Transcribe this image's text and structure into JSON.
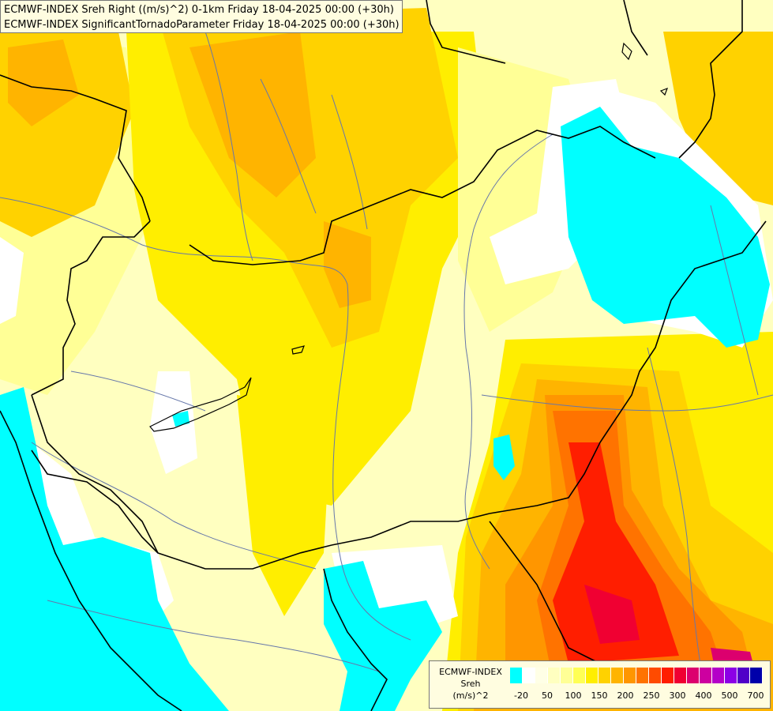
{
  "title_lines": [
    "ECMWF-INDEX Sreh Right ((m/s)^2) 0-1km Friday 18-04-2025 00:00 (+30h)",
    "ECMWF-INDEX SignificantTornadoParameter Friday 18-04-2025 00:00 (+30h)"
  ],
  "legend": {
    "source": "ECMWF-INDEX",
    "variable": "Sreh",
    "unit": "(m/s)^2",
    "colors": [
      "#00ffff",
      "#ffffff",
      "#ffffe6",
      "#ffffc0",
      "#ffff96",
      "#ffff55",
      "#ffee00",
      "#ffd200",
      "#ffb400",
      "#ff9600",
      "#ff7300",
      "#ff4b00",
      "#ff1e00",
      "#f00032",
      "#dc006e",
      "#cd00a0",
      "#b400c8",
      "#8c00e6",
      "#5000c8",
      "#0000aa"
    ],
    "ticks": [
      "-20",
      "50",
      "100",
      "150",
      "200",
      "250",
      "300",
      "400",
      "500",
      "700"
    ]
  },
  "map_colors": {
    "background": "#ffffc0",
    "light_yellow": "#ffff96",
    "yellow": "#ffee00",
    "gold": "#ffd200",
    "orange": "#ffb400",
    "dark_orange": "#ff9600",
    "red_orange": "#ff7300",
    "red": "#ff1e00",
    "crimson": "#f00032",
    "magenta": "#dc006e",
    "cyan": "#00ffff",
    "white": "#ffffff",
    "border": "#000000",
    "river": "#6677aa"
  }
}
